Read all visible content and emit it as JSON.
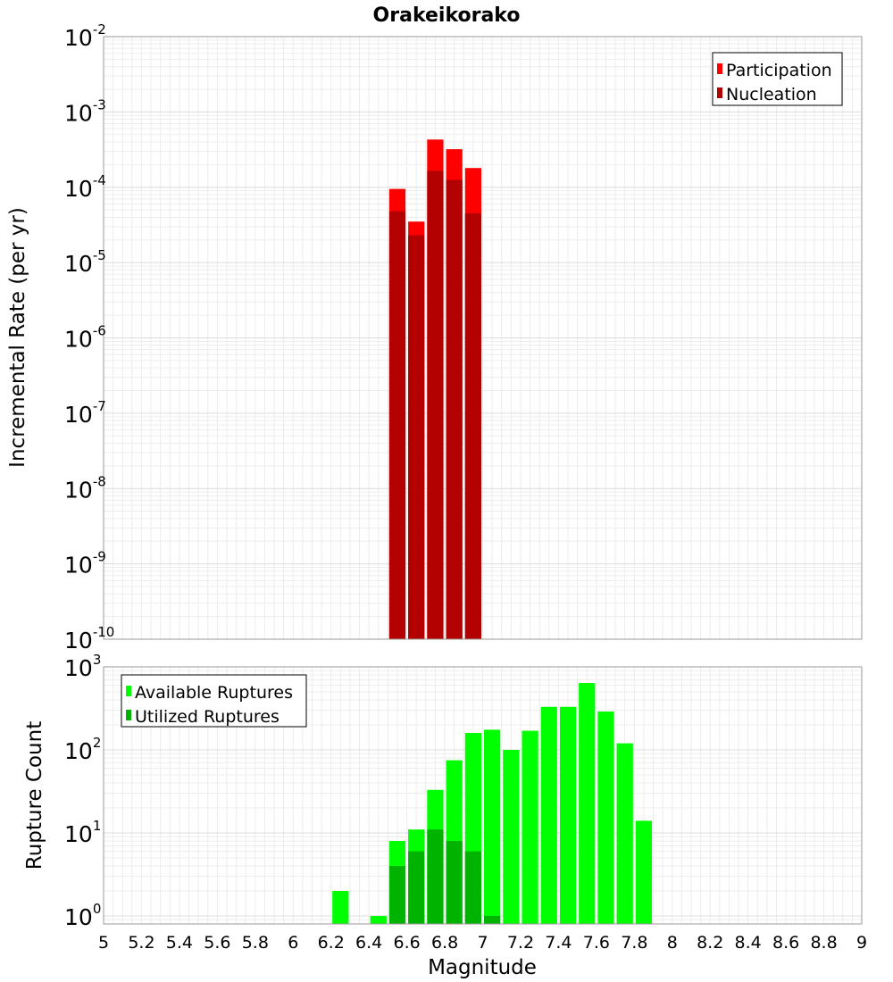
{
  "chart_data": [
    {
      "type": "bar",
      "title": "Orakeikorako",
      "ylabel": "Incremental Rate (per yr)",
      "xlabel": "",
      "xlim": [
        5,
        9
      ],
      "ylim": [
        1e-10,
        0.01
      ],
      "yscale": "log",
      "yticks": [
        {
          "base": "10",
          "exp": "-2"
        },
        {
          "base": "10",
          "exp": "-3"
        },
        {
          "base": "10",
          "exp": "-4"
        },
        {
          "base": "10",
          "exp": "-5"
        },
        {
          "base": "10",
          "exp": "-6"
        },
        {
          "base": "10",
          "exp": "-7"
        },
        {
          "base": "10",
          "exp": "-8"
        },
        {
          "base": "10",
          "exp": "-9"
        },
        {
          "base": "10",
          "exp": "-10"
        }
      ],
      "grid": true,
      "legend_position": "top-right",
      "bin_width": 0.1,
      "series": [
        {
          "name": "Participation",
          "color": "#ff0000",
          "x": [
            6.55,
            6.65,
            6.75,
            6.85,
            6.95
          ],
          "values": [
            9.5e-05,
            3.5e-05,
            0.00043,
            0.00032,
            0.00018
          ]
        },
        {
          "name": "Nucleation",
          "color": "#b30000",
          "x": [
            6.55,
            6.65,
            6.75,
            6.85,
            6.95
          ],
          "values": [
            4.8e-05,
            2.3e-05,
            0.000165,
            0.000125,
            4.5e-05
          ]
        }
      ]
    },
    {
      "type": "bar",
      "title": "",
      "ylabel": "Rupture Count",
      "xlabel": "Magnitude",
      "xlim": [
        5,
        9
      ],
      "ylim": [
        0.8,
        1000
      ],
      "yscale": "log",
      "yticks": [
        {
          "base": "10",
          "exp": "3"
        },
        {
          "base": "10",
          "exp": "2"
        },
        {
          "base": "10",
          "exp": "1"
        },
        {
          "base": "10",
          "exp": "0"
        }
      ],
      "xticks": [
        "5",
        "5.2",
        "5.4",
        "5.6",
        "5.8",
        "6",
        "6.2",
        "6.4",
        "6.6",
        "6.8",
        "7",
        "7.2",
        "7.4",
        "7.6",
        "7.8",
        "8",
        "8.2",
        "8.4",
        "8.6",
        "8.8",
        "9"
      ],
      "grid": true,
      "legend_position": "top-left",
      "bin_width": 0.1,
      "series": [
        {
          "name": "Available Ruptures",
          "color": "#00ff00",
          "x": [
            6.25,
            6.45,
            6.55,
            6.65,
            6.75,
            6.85,
            6.95,
            7.05,
            7.15,
            7.25,
            7.35,
            7.45,
            7.55,
            7.65,
            7.75,
            7.85
          ],
          "values": [
            2,
            1,
            8,
            11,
            33,
            75,
            160,
            175,
            100,
            170,
            330,
            330,
            640,
            290,
            120,
            14
          ]
        },
        {
          "name": "Utilized Ruptures",
          "color": "#00b300",
          "x": [
            6.55,
            6.65,
            6.75,
            6.85,
            6.95,
            7.05
          ],
          "values": [
            4,
            6,
            11,
            8,
            6,
            1
          ]
        }
      ]
    }
  ]
}
